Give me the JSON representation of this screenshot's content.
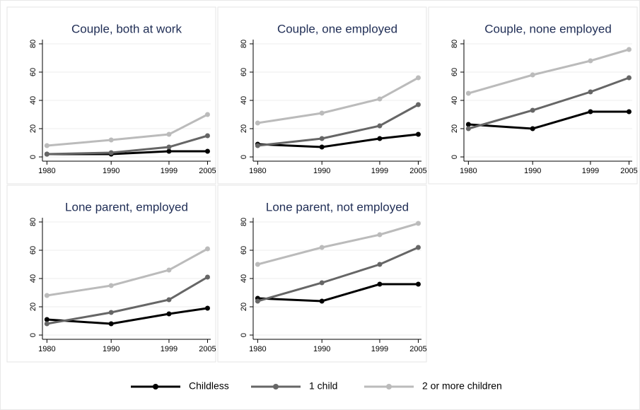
{
  "chart_data": [
    {
      "type": "line",
      "title": "Couple, both at work",
      "x": [
        1980,
        1990,
        1999,
        2005
      ],
      "xlim": [
        1979.3,
        2005.5
      ],
      "xticks": [
        1980,
        1990,
        1999,
        2005
      ],
      "ylim": [
        -3,
        83
      ],
      "yticks": [
        0,
        20,
        40,
        60,
        80
      ],
      "grid": true,
      "series": [
        {
          "name": "Childless",
          "color": "#000000",
          "values": [
            2,
            2,
            4,
            4
          ]
        },
        {
          "name": "1 child",
          "color": "#666666",
          "values": [
            2,
            3,
            7,
            15
          ]
        },
        {
          "name": "2 or more children",
          "color": "#bbbbbb",
          "values": [
            8,
            12,
            16,
            30
          ]
        }
      ]
    },
    {
      "type": "line",
      "title": "Couple, one employed",
      "x": [
        1980,
        1990,
        1999,
        2005
      ],
      "xlim": [
        1979.3,
        2005.5
      ],
      "xticks": [
        1980,
        1990,
        1999,
        2005
      ],
      "ylim": [
        -3,
        83
      ],
      "yticks": [
        0,
        20,
        40,
        60,
        80
      ],
      "grid": true,
      "series": [
        {
          "name": "Childless",
          "color": "#000000",
          "values": [
            9,
            7,
            13,
            16
          ]
        },
        {
          "name": "1 child",
          "color": "#666666",
          "values": [
            8,
            13,
            22,
            37
          ]
        },
        {
          "name": "2 or more children",
          "color": "#bbbbbb",
          "values": [
            24,
            31,
            41,
            56
          ]
        }
      ]
    },
    {
      "type": "line",
      "title": "Couple, none employed",
      "x": [
        1980,
        1990,
        1999,
        2005
      ],
      "xlim": [
        1979.3,
        2005.5
      ],
      "xticks": [
        1980,
        1990,
        1999,
        2005
      ],
      "ylim": [
        -3,
        83
      ],
      "yticks": [
        0,
        20,
        40,
        60,
        80
      ],
      "grid": true,
      "series": [
        {
          "name": "Childless",
          "color": "#000000",
          "values": [
            23,
            20,
            32,
            32
          ]
        },
        {
          "name": "1 child",
          "color": "#666666",
          "values": [
            20,
            33,
            46,
            56
          ]
        },
        {
          "name": "2 or more children",
          "color": "#bbbbbb",
          "values": [
            45,
            58,
            68,
            76
          ]
        }
      ]
    },
    {
      "type": "line",
      "title": "Lone parent, employed",
      "x": [
        1980,
        1990,
        1999,
        2005
      ],
      "xlim": [
        1979.3,
        2005.5
      ],
      "xticks": [
        1980,
        1990,
        1999,
        2005
      ],
      "ylim": [
        -3,
        83
      ],
      "yticks": [
        0,
        20,
        40,
        60,
        80
      ],
      "grid": true,
      "series": [
        {
          "name": "Childless",
          "color": "#000000",
          "values": [
            11,
            8,
            15,
            19
          ]
        },
        {
          "name": "1 child",
          "color": "#666666",
          "values": [
            8,
            16,
            25,
            41
          ]
        },
        {
          "name": "2 or more children",
          "color": "#bbbbbb",
          "values": [
            28,
            35,
            46,
            61
          ]
        }
      ]
    },
    {
      "type": "line",
      "title": "Lone parent, not employed",
      "x": [
        1980,
        1990,
        1999,
        2005
      ],
      "xlim": [
        1979.3,
        2005.5
      ],
      "xticks": [
        1980,
        1990,
        1999,
        2005
      ],
      "ylim": [
        -3,
        83
      ],
      "yticks": [
        0,
        20,
        40,
        60,
        80
      ],
      "grid": true,
      "series": [
        {
          "name": "Childless",
          "color": "#000000",
          "values": [
            26,
            24,
            36,
            36
          ]
        },
        {
          "name": "1 child",
          "color": "#666666",
          "values": [
            24,
            37,
            50,
            62
          ]
        },
        {
          "name": "2 or more children",
          "color": "#bbbbbb",
          "values": [
            50,
            62,
            71,
            79
          ]
        }
      ]
    }
  ]
}
